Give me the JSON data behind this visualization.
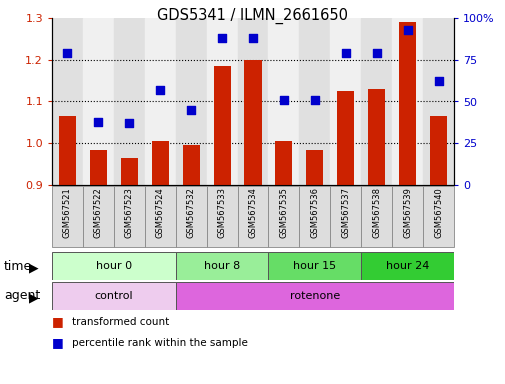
{
  "title": "GDS5341 / ILMN_2661650",
  "samples": [
    "GSM567521",
    "GSM567522",
    "GSM567523",
    "GSM567524",
    "GSM567532",
    "GSM567533",
    "GSM567534",
    "GSM567535",
    "GSM567536",
    "GSM567537",
    "GSM567538",
    "GSM567539",
    "GSM567540"
  ],
  "bar_values": [
    1.065,
    0.985,
    0.965,
    1.005,
    0.995,
    1.185,
    1.2,
    1.005,
    0.985,
    1.125,
    1.13,
    1.29,
    1.065
  ],
  "dot_values": [
    79,
    38,
    37,
    57,
    45,
    88,
    88,
    51,
    51,
    79,
    79,
    93,
    62
  ],
  "ylim_left": [
    0.9,
    1.3
  ],
  "ylim_right": [
    0,
    100
  ],
  "yticks_left": [
    0.9,
    1.0,
    1.1,
    1.2,
    1.3
  ],
  "yticks_right": [
    0,
    25,
    50,
    75,
    100
  ],
  "bar_color": "#CC2200",
  "dot_color": "#0000CC",
  "bar_baseline": 0.9,
  "groups": [
    {
      "label": "hour 0",
      "start": 0,
      "end": 4,
      "color": "#CCFFCC"
    },
    {
      "label": "hour 8",
      "start": 4,
      "end": 7,
      "color": "#88EE88"
    },
    {
      "label": "hour 15",
      "start": 7,
      "end": 10,
      "color": "#55DD55"
    },
    {
      "label": "hour 24",
      "start": 10,
      "end": 13,
      "color": "#22CC22"
    }
  ],
  "agents": [
    {
      "label": "control",
      "start": 0,
      "end": 4,
      "color": "#EECCEE"
    },
    {
      "label": "rotenone",
      "start": 4,
      "end": 13,
      "color": "#DD77DD"
    }
  ],
  "time_label": "time",
  "agent_label": "agent",
  "legend_bar": "transformed count",
  "legend_dot": "percentile rank within the sample",
  "bar_color_legend": "#CC2200",
  "dot_color_legend": "#0000CC",
  "tick_color_left": "#CC2200",
  "tick_color_right": "#0000CC",
  "label_box_color": "#DDDDDD",
  "label_box_edge": "#888888"
}
